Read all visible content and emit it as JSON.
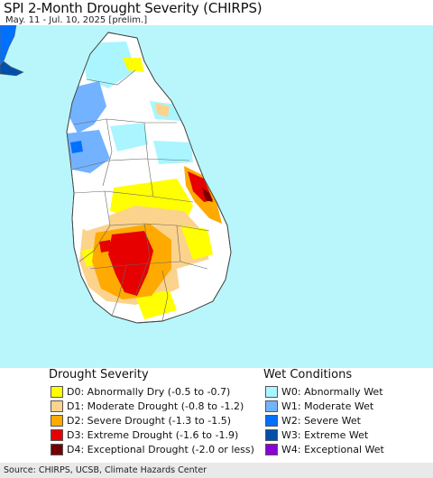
{
  "header": {
    "title": "SPI 2-Month Drought Severity (CHIRPS)",
    "subtitle": "May. 11 - Jul. 10, 2025 [prelim.]"
  },
  "colors": {
    "ocean": "#b9f6fb",
    "land_normal": "#ffffff",
    "district_border": "#666666",
    "D0": "#ffff00",
    "D1": "#fcd38c",
    "D2": "#ffaa00",
    "D3": "#e60000",
    "D4": "#730000",
    "W0": "#aaf5ff",
    "W1": "#73b2ff",
    "W2": "#0070ff",
    "W3": "#0050aa",
    "W4": "#8b00d6"
  },
  "legend": {
    "drought": {
      "title": "Drought Severity",
      "items": [
        {
          "code": "D0",
          "label": "D0: Abnormally Dry (-0.5 to -0.7)"
        },
        {
          "code": "D1",
          "label": "D1: Moderate Drought (-0.8 to -1.2)"
        },
        {
          "code": "D2",
          "label": "D2: Severe Drought (-1.3 to -1.5)"
        },
        {
          "code": "D3",
          "label": "D3: Extreme Drought (-1.6 to -1.9)"
        },
        {
          "code": "D4",
          "label": "D4: Exceptional Drought (-2.0 or less)"
        }
      ]
    },
    "wet": {
      "title": "Wet Conditions",
      "items": [
        {
          "code": "W0",
          "label": "W0: Abnormally Wet"
        },
        {
          "code": "W1",
          "label": "W1: Moderate Wet"
        },
        {
          "code": "W2",
          "label": "W2: Severe Wet"
        },
        {
          "code": "W3",
          "label": "W3: Extreme Wet"
        },
        {
          "code": "W4",
          "label": "W4: Exceptional Wet"
        }
      ]
    }
  },
  "footer": {
    "source": "Source: CHIRPS, UCSB, Climate Hazards Center"
  }
}
